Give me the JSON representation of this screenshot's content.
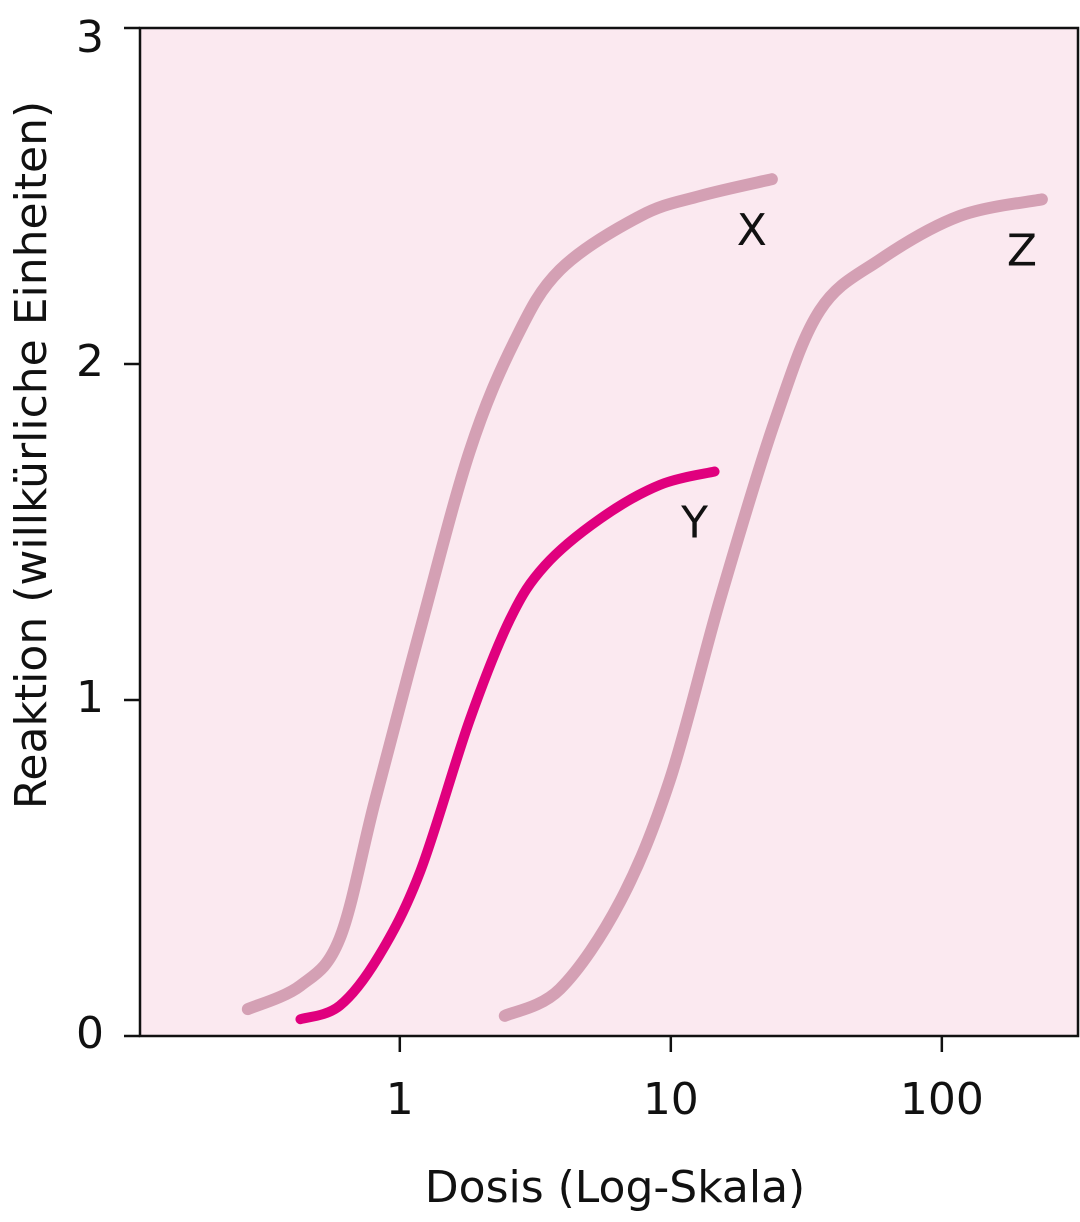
{
  "chart_data": {
    "type": "line",
    "x_label": "Dosis (Log-Skala)",
    "y_label": "Reaktion (willkürliche Einheiten)",
    "xscale": "log",
    "xlim": [
      0.11,
      318
    ],
    "xticks": [
      1,
      10,
      100
    ],
    "ylim": [
      0,
      3
    ],
    "yticks": [
      0,
      1,
      2,
      3
    ],
    "background": "#fbe9f0",
    "series": [
      {
        "name": "X",
        "color": "#d4a0b4",
        "x": [
          0.275,
          0.43,
          0.6,
          0.81,
          1.19,
          1.81,
          2.66,
          3.9,
          7.7,
          12.8,
          23.6
        ],
        "values": [
          0.08,
          0.15,
          0.29,
          0.7,
          1.21,
          1.74,
          2.07,
          2.28,
          2.44,
          2.5,
          2.55
        ]
      },
      {
        "name": "Y",
        "color": "#e0007e",
        "x": [
          0.43,
          0.6,
          0.84,
          1.19,
          1.81,
          2.55,
          3.43,
          5.5,
          9.1,
          14.5
        ],
        "values": [
          0.05,
          0.09,
          0.24,
          0.49,
          0.94,
          1.24,
          1.4,
          1.54,
          1.64,
          1.68
        ]
      },
      {
        "name": "Z",
        "color": "#d4a0b4",
        "x": [
          2.44,
          3.9,
          6.5,
          9.9,
          15.2,
          24.2,
          35.5,
          59,
          116,
          234
        ],
        "values": [
          0.06,
          0.14,
          0.4,
          0.76,
          1.3,
          1.83,
          2.16,
          2.31,
          2.44,
          2.49
        ]
      }
    ]
  }
}
